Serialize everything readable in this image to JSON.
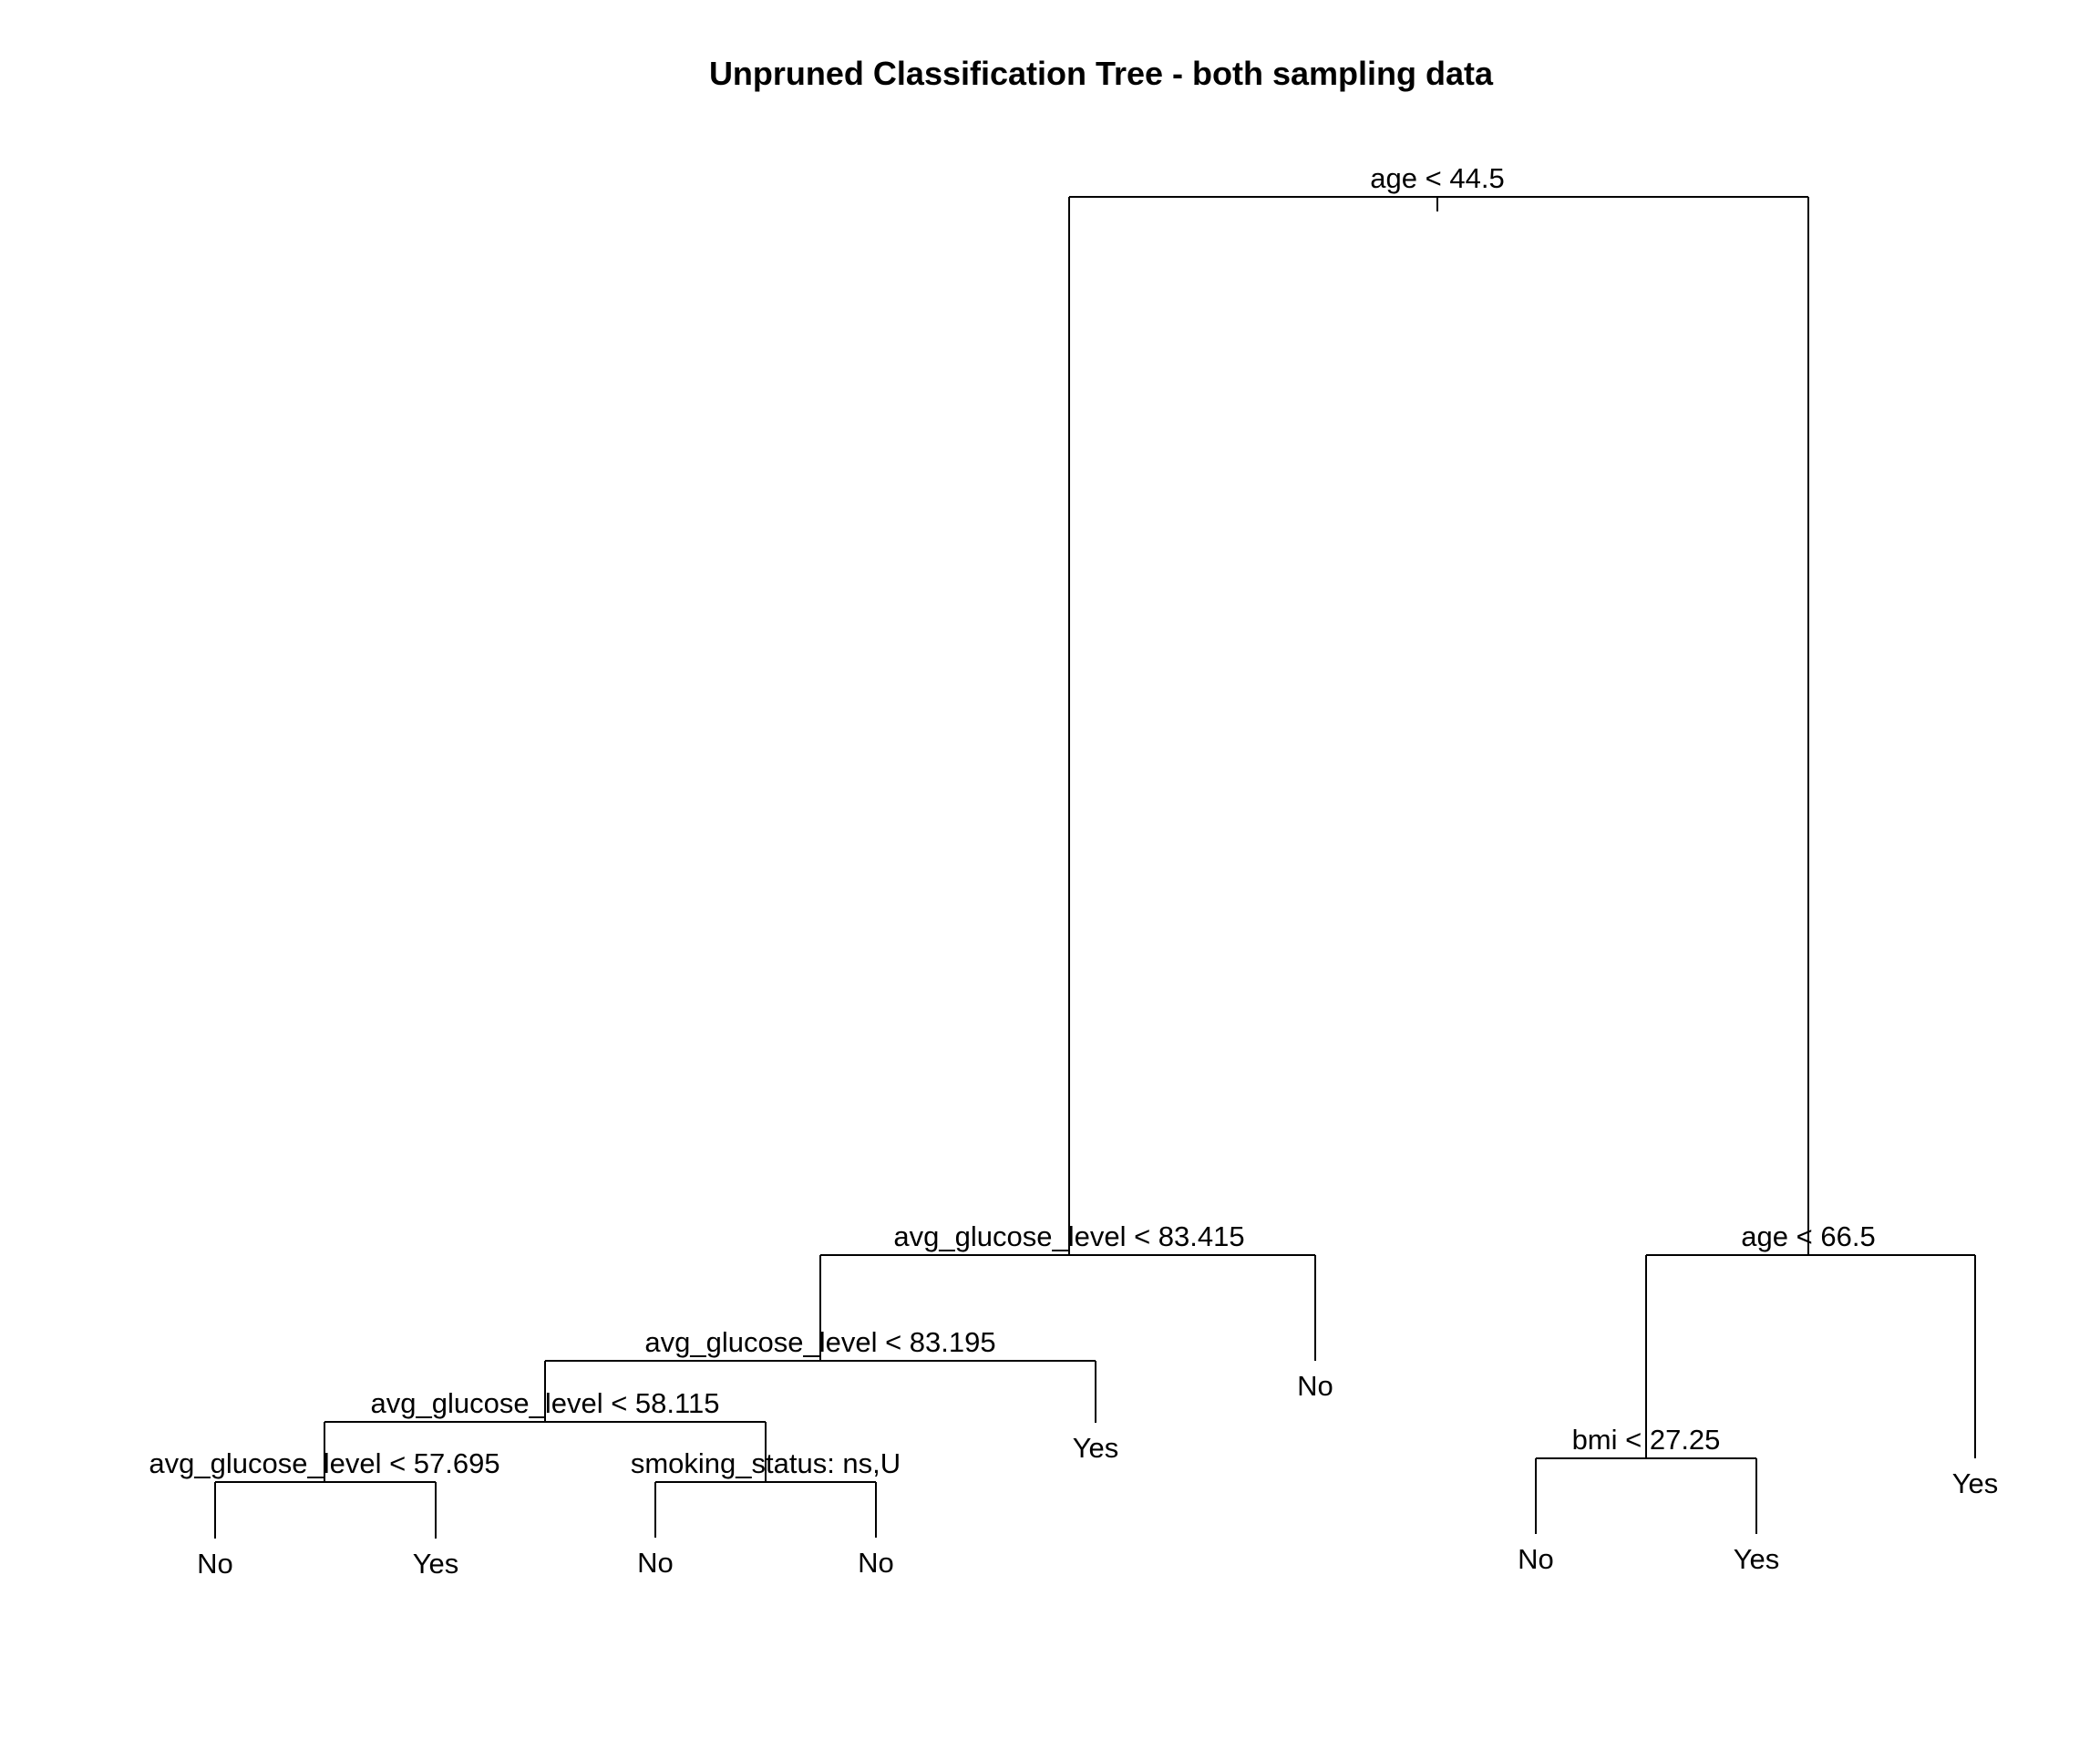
{
  "title": "Unpruned Classification Tree - both sampling data",
  "tree": {
    "split": "age < 44.5",
    "left": {
      "split": "avg_glucose_level < 83.415",
      "left": {
        "split": "avg_glucose_level < 83.195",
        "left": {
          "split": "avg_glucose_level < 58.115",
          "left": {
            "split": "avg_glucose_level < 57.695",
            "left": {
              "leaf": "No"
            },
            "right": {
              "leaf": "Yes"
            }
          },
          "right": {
            "split": "smoking_status: ns,U",
            "left": {
              "leaf": "No"
            },
            "right": {
              "leaf": "No"
            }
          }
        },
        "right": {
          "leaf": "Yes"
        }
      },
      "right": {
        "leaf": "No"
      }
    },
    "right": {
      "split": "age < 66.5",
      "left": {
        "split": "bmi < 27.25",
        "left": {
          "leaf": "No"
        },
        "right": {
          "leaf": "Yes"
        }
      },
      "right": {
        "leaf": "Yes"
      }
    }
  }
}
